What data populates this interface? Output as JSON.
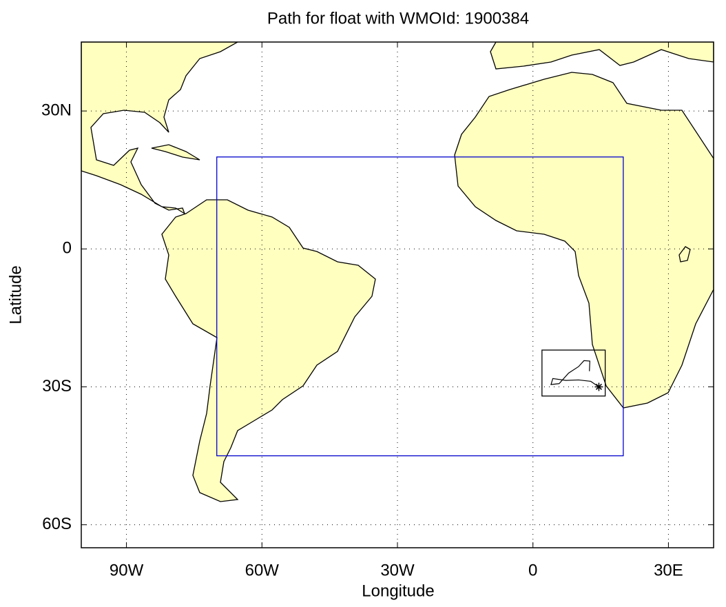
{
  "chart_data": {
    "type": "map",
    "title": "Path for float with WMOId: 1900384",
    "x_label": "Longitude",
    "y_label": "Latitude",
    "xlim": [
      -100,
      40
    ],
    "ylim": [
      -65,
      45
    ],
    "xticks": [
      {
        "value": -90,
        "label": "90W"
      },
      {
        "value": -60,
        "label": "60W"
      },
      {
        "value": -30,
        "label": "30W"
      },
      0,
      {
        "value": 30,
        "label": "30E"
      }
    ],
    "yticks": [
      {
        "value": -60,
        "label": "60S"
      },
      {
        "value": -30,
        "label": "30S"
      },
      0,
      {
        "value": 30,
        "label": "30N"
      }
    ],
    "grid": true,
    "land_color": "#ffffc0",
    "region": {
      "lon": [
        -70,
        20
      ],
      "lat": [
        -45,
        20
      ],
      "color": "#0000cc"
    },
    "inset": {
      "lon": [
        2,
        16
      ],
      "lat": [
        -32,
        -22
      ]
    },
    "float_path": {
      "lon": [
        14.6,
        12.8,
        10.1,
        7.3,
        4.4,
        4.0,
        5.8,
        7.9,
        10.1,
        11.3,
        12.6,
        12.5
      ],
      "lat": [
        -30.0,
        -28.8,
        -28.5,
        -28.6,
        -28.2,
        -29.5,
        -29.3,
        -27.0,
        -25.6,
        -24.3,
        -24.4,
        -26.6
      ]
    }
  }
}
